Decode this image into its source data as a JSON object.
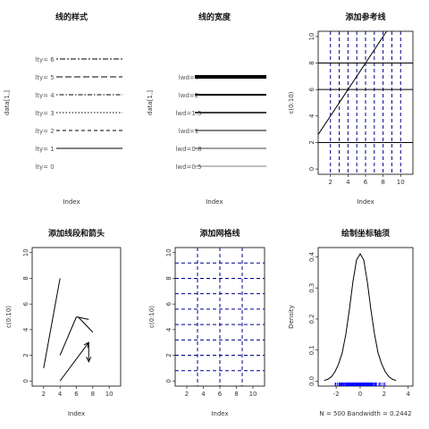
{
  "chart_data": [
    {
      "type": "line",
      "title": "线的样式",
      "xlabel": "Index",
      "ylabel": "data[1,]",
      "labels": [
        "lty= 0",
        "lty= 1",
        "lty= 2",
        "lty= 3",
        "lty= 4",
        "lty= 5",
        "lty= 6"
      ],
      "lty": [
        0,
        1,
        2,
        3,
        4,
        5,
        6
      ],
      "axes": false
    },
    {
      "type": "line",
      "title": "线的宽度",
      "xlabel": "Index",
      "ylabel": "data[1,]",
      "labels": [
        "lwd=0.5",
        "lwd=0.8",
        "lwd=1",
        "lwd=1.5",
        "lwd=2",
        "lwd=4"
      ],
      "lwd": [
        0.5,
        0.8,
        1,
        1.5,
        2,
        4
      ],
      "axes": false
    },
    {
      "type": "line",
      "title": "添加参考线",
      "xlabel": "Index",
      "ylabel": "c(0:10)",
      "xticks": [
        2,
        4,
        6,
        8,
        10
      ],
      "yticks": [
        0,
        2,
        4,
        6,
        8,
        10
      ],
      "xlim": [
        0.6,
        11.4
      ],
      "ylim": [
        -0.4,
        10.4
      ],
      "abline": {
        "intercept": 2,
        "slope": 1
      },
      "hlines": [
        2,
        6,
        8
      ],
      "vlines_dashed": [
        2,
        3,
        4,
        5,
        6,
        7,
        8,
        9,
        10
      ],
      "vline_color": "#00008b"
    },
    {
      "type": "line",
      "title": "添加线段和箭头",
      "xlabel": "Index",
      "ylabel": "c(0:10)",
      "xticks": [
        2,
        4,
        6,
        8,
        10
      ],
      "yticks": [
        0,
        2,
        4,
        6,
        8,
        10
      ],
      "xlim": [
        0.6,
        11.4
      ],
      "ylim": [
        -0.4,
        10.4
      ],
      "segments": [
        [
          2,
          1,
          4,
          8
        ],
        [
          4,
          2,
          6,
          5
        ],
        [
          6,
          5,
          7.5,
          4.8
        ],
        [
          6.2,
          5,
          8,
          3.8
        ]
      ],
      "arrows": [
        [
          4,
          0,
          7.5,
          3
        ],
        [
          7.5,
          3,
          7.5,
          1.5
        ]
      ]
    },
    {
      "type": "line",
      "title": "添加网格线",
      "xlabel": "Index",
      "ylabel": "c(0:10)",
      "xticks": [
        2,
        4,
        6,
        8,
        10
      ],
      "yticks": [
        0,
        2,
        4,
        6,
        8,
        10
      ],
      "xlim": [
        0.6,
        11.4
      ],
      "ylim": [
        -0.4,
        10.4
      ],
      "grid_nx": 3,
      "grid_ny": 8,
      "grid_color": "#00008b"
    },
    {
      "type": "area",
      "title": "绘制坐标轴须",
      "xlabel": "N = 500   Bandwidth = 0.2442",
      "ylabel": "Density",
      "xticks": [
        -2,
        0,
        2,
        4
      ],
      "yticks": [
        0.0,
        0.1,
        0.2,
        0.3,
        0.4
      ],
      "ytick_labels": [
        "0.0",
        "0.1",
        "0.2",
        "0.3",
        "0.4"
      ],
      "xlim": [
        -3.5,
        4.4
      ],
      "ylim": [
        -0.016,
        0.43
      ],
      "density_x": [
        -3.0,
        -2.7,
        -2.4,
        -2.1,
        -1.8,
        -1.5,
        -1.2,
        -0.9,
        -0.6,
        -0.3,
        0.0,
        0.3,
        0.6,
        0.9,
        1.2,
        1.5,
        1.8,
        2.1,
        2.4,
        2.7,
        3.0
      ],
      "density_y": [
        0.002,
        0.006,
        0.014,
        0.03,
        0.055,
        0.09,
        0.15,
        0.23,
        0.32,
        0.39,
        0.41,
        0.39,
        0.32,
        0.23,
        0.15,
        0.09,
        0.055,
        0.03,
        0.014,
        0.006,
        0.002
      ],
      "rug_range": [
        -2.6,
        2.5
      ],
      "rug_color": "#0000ff"
    }
  ]
}
